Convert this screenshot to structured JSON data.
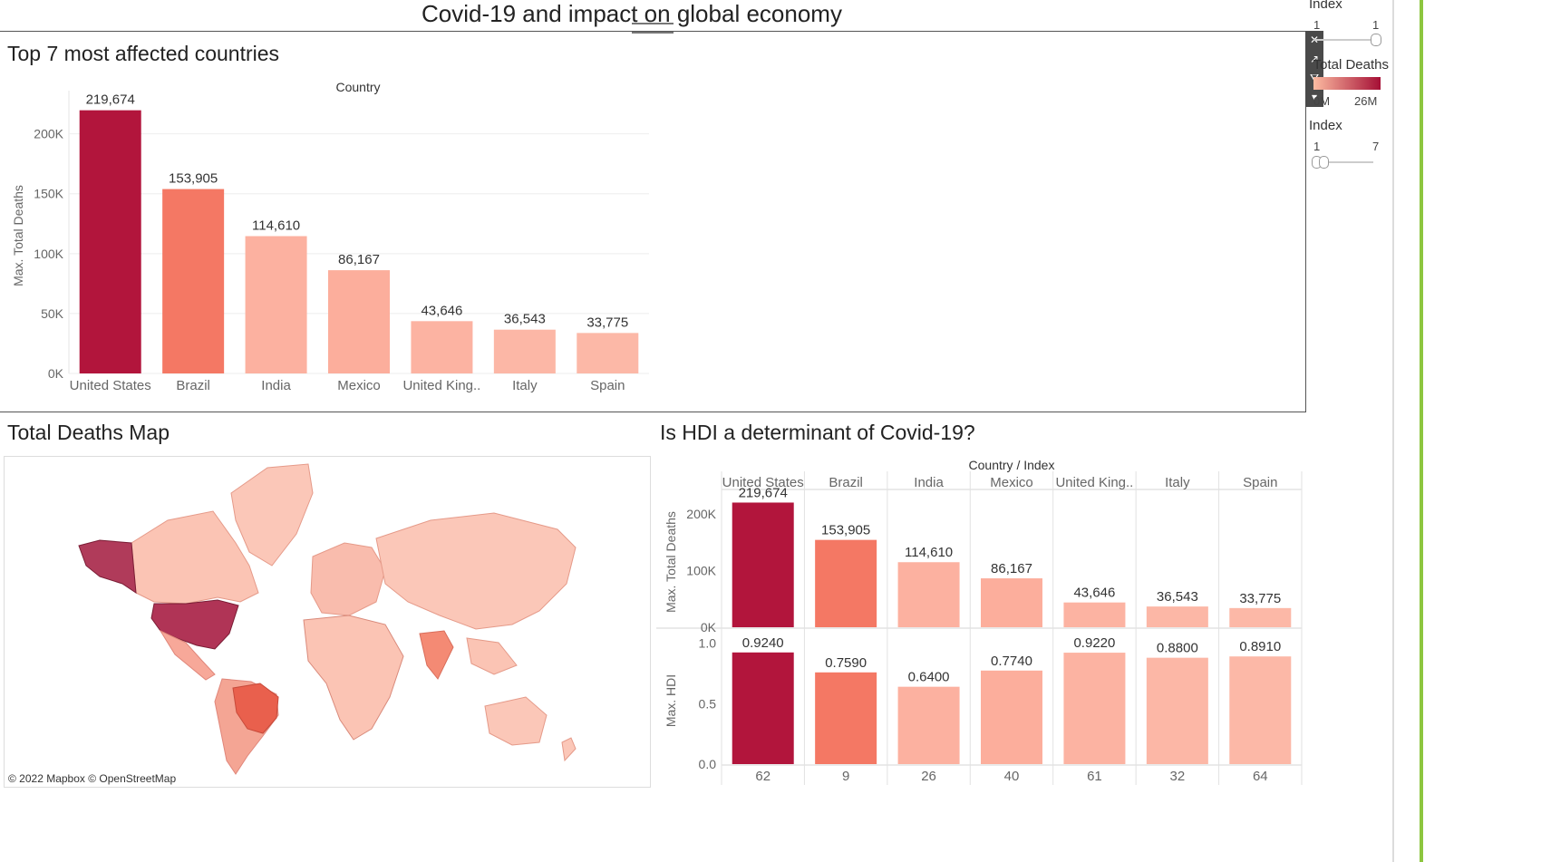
{
  "dashboard": {
    "title": "Covid-19 and impact on global economy"
  },
  "right_panel": {
    "index_filter_1": {
      "title": "Index",
      "min": "1",
      "max": "1"
    },
    "color_legend": {
      "title": "Total Deaths",
      "min": "0M",
      "max": "26M",
      "colors": [
        "#fcbba1",
        "#a50f35"
      ]
    },
    "index_filter_2": {
      "title": "Index",
      "min": "1",
      "max": "7"
    },
    "toolbar_icons": [
      "close-icon",
      "popout-icon",
      "filter-icon",
      "more-icon"
    ]
  },
  "top_chart": {
    "sheet_title": "Top 7 most affected countries",
    "header": "Country",
    "chart_data": {
      "type": "bar",
      "categories": [
        "United States",
        "Brazil",
        "India",
        "Mexico",
        "United King..",
        "Italy",
        "Spain"
      ],
      "values": [
        219674,
        153905,
        114610,
        86167,
        43646,
        36543,
        33775
      ],
      "value_labels": [
        "219,674",
        "153,905",
        "114,610",
        "86,167",
        "43,646",
        "36,543",
        "33,775"
      ],
      "colors": [
        "#b2153c",
        "#f47864",
        "#fcb1a0",
        "#fcae9c",
        "#fcb3a2",
        "#fcb7a6",
        "#fcb8a7"
      ],
      "ylabel": "Max. Total Deaths",
      "yticks": [
        0,
        50000,
        100000,
        150000,
        200000
      ],
      "ytick_labels": [
        "0K",
        "50K",
        "100K",
        "150K",
        "200K"
      ],
      "ylim": [
        0,
        230000
      ],
      "grid": true
    }
  },
  "map": {
    "sheet_title": "Total Deaths Map",
    "attribution": "© 2022 Mapbox © OpenStreetMap"
  },
  "hdi_chart": {
    "sheet_title": "Is HDI a determinant of Covid-19?",
    "header": "Country / Index",
    "chart_data": [
      {
        "type": "bar",
        "categories": [
          "United States",
          "Brazil",
          "India",
          "Mexico",
          "United King..",
          "Italy",
          "Spain"
        ],
        "values": [
          219674,
          153905,
          114610,
          86167,
          43646,
          36543,
          33775
        ],
        "value_labels": [
          "219,674",
          "153,905",
          "114,610",
          "86,167",
          "43,646",
          "36,543",
          "33,775"
        ],
        "ylabel": "Max. Total Deaths",
        "yticks": [
          0,
          100000,
          200000
        ],
        "ytick_labels": [
          "0K",
          "100K",
          "200K"
        ],
        "ylim": [
          0,
          230000
        ]
      },
      {
        "type": "bar",
        "categories": [
          "United States",
          "Brazil",
          "India",
          "Mexico",
          "United King..",
          "Italy",
          "Spain"
        ],
        "values": [
          0.924,
          0.759,
          0.64,
          0.774,
          0.922,
          0.88,
          0.891
        ],
        "value_labels": [
          "0.9240",
          "0.7590",
          "0.6400",
          "0.7740",
          "0.9220",
          "0.8800",
          "0.8910"
        ],
        "ylabel": "Max. HDI",
        "yticks": [
          0,
          0.5,
          1.0
        ],
        "ytick_labels": [
          "0.0",
          "0.5",
          "1.0"
        ],
        "ylim": [
          0,
          1.05
        ]
      }
    ],
    "index_labels": [
      "62",
      "9",
      "26",
      "40",
      "61",
      "32",
      "64"
    ],
    "colors": [
      "#b2153c",
      "#f47864",
      "#fcb1a0",
      "#fcae9c",
      "#fcb3a2",
      "#fcb7a6",
      "#fcb8a7"
    ]
  }
}
